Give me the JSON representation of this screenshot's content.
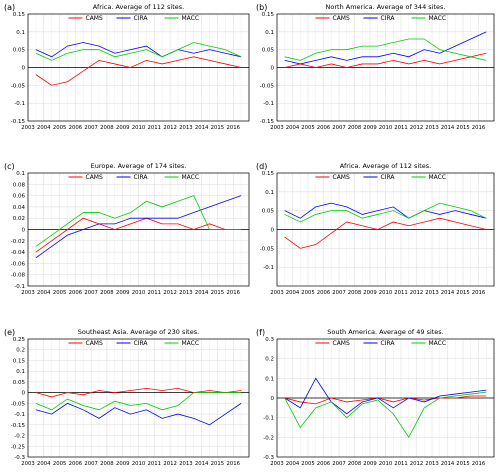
{
  "chart_data": [
    {
      "type": "line",
      "panel_label": "(a)",
      "title": "Africa. Average of 112 sites.",
      "x": [
        2003,
        2004,
        2005,
        2006,
        2007,
        2008,
        2009,
        2010,
        2011,
        2012,
        2013,
        2014,
        2015,
        2016
      ],
      "xlim": [
        2003,
        2017
      ],
      "ylim": [
        -0.15,
        0.15
      ],
      "yticks": [
        -0.15,
        -0.1,
        -0.05,
        0,
        0.05,
        0.1,
        0.15
      ],
      "ytick_labels": [
        "-0.15",
        "-0.1",
        "-0.05",
        "0",
        "0.05",
        "0.1",
        "0.15"
      ],
      "grid": true,
      "legend": "top",
      "series": [
        {
          "name": "CAMS",
          "color": "#ff0000",
          "values": [
            -0.02,
            -0.05,
            -0.04,
            -0.01,
            0.02,
            0.01,
            0.0,
            0.02,
            0.01,
            0.02,
            0.03,
            0.02,
            0.01,
            0.0
          ]
        },
        {
          "name": "CIRA",
          "color": "#0000ff",
          "values": [
            0.05,
            0.03,
            0.06,
            0.07,
            0.06,
            0.04,
            0.05,
            0.06,
            0.03,
            0.05,
            0.04,
            0.05,
            0.04,
            0.03
          ]
        },
        {
          "name": "MACC",
          "color": "#00cc00",
          "values": [
            0.04,
            0.02,
            0.04,
            0.05,
            0.05,
            0.03,
            0.04,
            0.05,
            0.03,
            0.05,
            0.07,
            0.06,
            0.05,
            0.03
          ]
        }
      ]
    },
    {
      "type": "line",
      "panel_label": "(b)",
      "title": "North America. Average of 344 sites.",
      "x": [
        2003,
        2004,
        2005,
        2006,
        2007,
        2008,
        2009,
        2010,
        2011,
        2012,
        2013,
        2014,
        2015,
        2016
      ],
      "xlim": [
        2003,
        2017
      ],
      "ylim": [
        -0.15,
        0.15
      ],
      "yticks": [
        -0.15,
        -0.1,
        -0.05,
        0,
        0.05,
        0.1,
        0.15
      ],
      "ytick_labels": [
        "-0.15",
        "-0.1",
        "-0.05",
        "0",
        "0.05",
        "0.1",
        "0.15"
      ],
      "grid": true,
      "legend": "top",
      "series": [
        {
          "name": "CAMS",
          "color": "#ff0000",
          "values": [
            0.0,
            0.01,
            0.0,
            0.01,
            0.0,
            0.01,
            0.01,
            0.02,
            0.01,
            0.02,
            0.01,
            0.02,
            0.03,
            0.04
          ]
        },
        {
          "name": "CIRA",
          "color": "#0000ff",
          "values": [
            0.02,
            0.01,
            0.02,
            0.03,
            0.02,
            0.03,
            0.03,
            0.04,
            0.03,
            0.05,
            0.04,
            0.06,
            0.08,
            0.1
          ]
        },
        {
          "name": "MACC",
          "color": "#00cc00",
          "values": [
            0.03,
            0.02,
            0.04,
            0.05,
            0.05,
            0.06,
            0.06,
            0.07,
            0.08,
            0.08,
            0.05,
            0.04,
            0.03,
            0.02
          ]
        }
      ]
    },
    {
      "type": "line",
      "panel_label": "(c)",
      "title": "Europe. Average of 174 sites.",
      "x": [
        2003,
        2004,
        2005,
        2006,
        2007,
        2008,
        2009,
        2010,
        2011,
        2012,
        2013,
        2014,
        2015,
        2016
      ],
      "xlim": [
        2003,
        2017
      ],
      "ylim": [
        -0.1,
        0.1
      ],
      "yticks": [
        -0.1,
        -0.08,
        -0.06,
        -0.04,
        -0.02,
        0,
        0.02,
        0.04,
        0.06,
        0.08,
        0.1
      ],
      "ytick_labels": [
        "-0.1",
        "-0.08",
        "-0.06",
        "-0.04",
        "-0.02",
        "0",
        "0.02",
        "0.04",
        "0.06",
        "0.08",
        "0.1"
      ],
      "grid": true,
      "legend": "top",
      "series": [
        {
          "name": "CAMS",
          "color": "#ff0000",
          "values": [
            -0.04,
            -0.02,
            0.0,
            0.02,
            0.01,
            0.0,
            0.01,
            0.02,
            0.01,
            0.01,
            0.0,
            0.01,
            0.0,
            0.0
          ]
        },
        {
          "name": "CIRA",
          "color": "#0000ff",
          "values": [
            -0.05,
            -0.03,
            -0.01,
            0.0,
            0.01,
            0.01,
            0.02,
            0.02,
            0.02,
            0.02,
            0.03,
            0.04,
            0.05,
            0.06
          ]
        },
        {
          "name": "MACC",
          "color": "#00cc00",
          "values": [
            -0.03,
            -0.01,
            0.01,
            0.03,
            0.03,
            0.02,
            0.03,
            0.05,
            0.04,
            0.05,
            0.06,
            0.0,
            0.0,
            0.0
          ]
        }
      ]
    },
    {
      "type": "line",
      "panel_label": "(d)",
      "title": "Africa. Average of 112 sites.",
      "x": [
        2003,
        2004,
        2005,
        2006,
        2007,
        2008,
        2009,
        2010,
        2011,
        2012,
        2013,
        2014,
        2015,
        2016
      ],
      "xlim": [
        2003,
        2017
      ],
      "ylim": [
        -0.15,
        0.15
      ],
      "yticks": [
        -0.1,
        -0.05,
        0,
        0.05,
        0.1,
        0.15
      ],
      "ytick_labels": [
        "-0.1",
        "-0.05",
        "0",
        "0.05",
        "0.1",
        "0.15"
      ],
      "grid": true,
      "legend": "top",
      "series": [
        {
          "name": "CAMS",
          "color": "#ff0000",
          "values": [
            -0.02,
            -0.05,
            -0.04,
            -0.01,
            0.02,
            0.01,
            0.0,
            0.02,
            0.01,
            0.02,
            0.03,
            0.02,
            0.01,
            0.0
          ]
        },
        {
          "name": "CIRA",
          "color": "#0000ff",
          "values": [
            0.05,
            0.03,
            0.06,
            0.07,
            0.06,
            0.04,
            0.05,
            0.06,
            0.03,
            0.05,
            0.04,
            0.05,
            0.04,
            0.03
          ]
        },
        {
          "name": "MACC",
          "color": "#00cc00",
          "values": [
            0.04,
            0.02,
            0.04,
            0.05,
            0.05,
            0.03,
            0.04,
            0.05,
            0.03,
            0.05,
            0.07,
            0.06,
            0.05,
            0.03
          ]
        }
      ]
    },
    {
      "type": "line",
      "panel_label": "(e)",
      "title": "Southeast Asia. Average of 230 sites.",
      "x": [
        2003,
        2004,
        2005,
        2006,
        2007,
        2008,
        2009,
        2010,
        2011,
        2012,
        2013,
        2014,
        2015,
        2016
      ],
      "xlim": [
        2003,
        2017
      ],
      "ylim": [
        -0.3,
        0.25
      ],
      "yticks": [
        -0.3,
        -0.25,
        -0.2,
        -0.15,
        -0.1,
        -0.05,
        0,
        0.05,
        0.1,
        0.15,
        0.2,
        0.25
      ],
      "ytick_labels": [
        "-0.3",
        "-0.25",
        "-0.2",
        "-0.15",
        "-0.1",
        "-0.05",
        "0",
        "0.05",
        "0.1",
        "0.15",
        "0.2",
        "0.25"
      ],
      "grid": true,
      "legend": "top",
      "series": [
        {
          "name": "CAMS",
          "color": "#ff0000",
          "values": [
            0.0,
            -0.02,
            0.0,
            -0.01,
            0.01,
            0.0,
            0.01,
            0.02,
            0.01,
            0.02,
            0.0,
            0.01,
            0.0,
            0.01
          ]
        },
        {
          "name": "CIRA",
          "color": "#0000ff",
          "values": [
            -0.08,
            -0.1,
            -0.05,
            -0.08,
            -0.12,
            -0.07,
            -0.1,
            -0.08,
            -0.12,
            -0.1,
            -0.12,
            -0.15,
            -0.1,
            -0.05
          ]
        },
        {
          "name": "MACC",
          "color": "#00cc00",
          "values": [
            -0.05,
            -0.08,
            -0.03,
            -0.06,
            -0.08,
            -0.04,
            -0.06,
            -0.05,
            -0.08,
            -0.06,
            0.0,
            0.0,
            0.0,
            0.0
          ]
        }
      ]
    },
    {
      "type": "line",
      "panel_label": "(f)",
      "title": "South America. Average of 49 sites.",
      "x": [
        2003,
        2004,
        2005,
        2006,
        2007,
        2008,
        2009,
        2010,
        2011,
        2012,
        2013,
        2014,
        2015,
        2016
      ],
      "xlim": [
        2003,
        2017
      ],
      "ylim": [
        -0.3,
        0.3
      ],
      "yticks": [
        -0.3,
        -0.2,
        -0.1,
        0,
        0.1,
        0.2,
        0.3
      ],
      "ytick_labels": [
        "-0.3",
        "-0.2",
        "-0.1",
        "0",
        "0.1",
        "0.2",
        "0.3"
      ],
      "grid": true,
      "legend": "top",
      "series": [
        {
          "name": "CAMS",
          "color": "#ff0000",
          "values": [
            0.0,
            -0.02,
            -0.03,
            0.0,
            -0.02,
            -0.01,
            0.0,
            -0.02,
            0.0,
            -0.01,
            0.0,
            0.0,
            0.01,
            0.01
          ]
        },
        {
          "name": "CIRA",
          "color": "#0000ff",
          "values": [
            0.0,
            -0.05,
            0.1,
            -0.02,
            -0.08,
            -0.02,
            0.0,
            -0.05,
            0.0,
            -0.02,
            0.01,
            0.02,
            0.03,
            0.04
          ]
        },
        {
          "name": "MACC",
          "color": "#00cc00",
          "values": [
            0.0,
            -0.15,
            -0.05,
            -0.02,
            -0.1,
            -0.03,
            -0.01,
            -0.08,
            -0.2,
            -0.05,
            0.0,
            0.01,
            0.02,
            0.03
          ]
        }
      ]
    }
  ]
}
